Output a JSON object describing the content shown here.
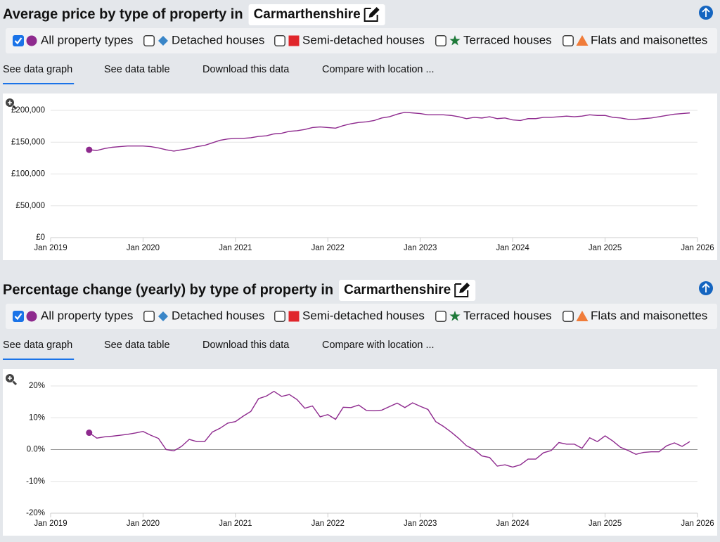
{
  "panels": [
    {
      "title": "Average price by type of property in",
      "location": "Carmarthenshire",
      "options": [
        {
          "label": "Detached houses",
          "color": "#3a86c8",
          "marker": "diamond",
          "checked": false
        },
        {
          "label": "Semi-detached houses",
          "color": "#e0262b",
          "marker": "square",
          "checked": false
        },
        {
          "label": "Terraced houses",
          "color": "#1f7a3a",
          "marker": "star",
          "checked": false
        },
        {
          "label": "Flats and maisonettes",
          "color": "#f07c3a",
          "marker": "triangle",
          "checked": false
        }
      ],
      "tabs": [
        "See data graph",
        "See data table",
        "Download this data",
        "Compare with location ..."
      ],
      "active_tab": 0
    },
    {
      "title": "Percentage change (yearly) by type of property in",
      "location": "Carmarthenshire",
      "options": [
        {
          "label": "Detached houses",
          "color": "#3a86c8",
          "marker": "diamond",
          "checked": false
        },
        {
          "label": "Semi-detached houses",
          "color": "#e0262b",
          "marker": "square",
          "checked": false
        },
        {
          "label": "Terraced houses",
          "color": "#1f7a3a",
          "marker": "star",
          "checked": false
        },
        {
          "label": "Flats and maisonettes",
          "color": "#f07c3a",
          "marker": "triangle",
          "checked": false
        }
      ],
      "tabs": [
        "See data graph",
        "See data table",
        "Download this data",
        "Compare with location ..."
      ],
      "active_tab": 0
    }
  ],
  "chart_data": [
    {
      "type": "line",
      "grid": true,
      "zero_line": false,
      "xlim": [
        "2019-01",
        "2026-01"
      ],
      "xticks": [
        {
          "value": "2019-01",
          "label": "Jan 2019"
        },
        {
          "value": "2020-01",
          "label": "Jan 2020"
        },
        {
          "value": "2021-01",
          "label": "Jan 2021"
        },
        {
          "value": "2022-01",
          "label": "Jan 2022"
        },
        {
          "value": "2023-01",
          "label": "Jan 2023"
        },
        {
          "value": "2024-01",
          "label": "Jan 2024"
        },
        {
          "value": "2025-01",
          "label": "Jan 2025"
        },
        {
          "value": "2026-01",
          "label": "Jan 2026"
        }
      ],
      "ylim": [
        0,
        200000
      ],
      "yticks": [
        {
          "value": 0,
          "label": "£0"
        },
        {
          "value": 50000,
          "label": "£50,000"
        },
        {
          "value": 100000,
          "label": "£100,000"
        },
        {
          "value": 150000,
          "label": "£150,000"
        },
        {
          "value": 200000,
          "label": "£200,000"
        }
      ],
      "x": [
        "2019-06",
        "2019-07",
        "2019-08",
        "2019-09",
        "2019-10",
        "2019-11",
        "2019-12",
        "2020-01",
        "2020-02",
        "2020-03",
        "2020-04",
        "2020-05",
        "2020-06",
        "2020-07",
        "2020-08",
        "2020-09",
        "2020-10",
        "2020-11",
        "2020-12",
        "2021-01",
        "2021-02",
        "2021-03",
        "2021-04",
        "2021-05",
        "2021-06",
        "2021-07",
        "2021-08",
        "2021-09",
        "2021-10",
        "2021-11",
        "2021-12",
        "2022-01",
        "2022-02",
        "2022-03",
        "2022-04",
        "2022-05",
        "2022-06",
        "2022-07",
        "2022-08",
        "2022-09",
        "2022-10",
        "2022-11",
        "2022-12",
        "2023-01",
        "2023-02",
        "2023-03",
        "2023-04",
        "2023-05",
        "2023-06",
        "2023-07",
        "2023-08",
        "2023-09",
        "2023-10",
        "2023-11",
        "2023-12",
        "2024-01",
        "2024-02",
        "2024-03",
        "2024-04",
        "2024-05",
        "2024-06",
        "2024-07",
        "2024-08",
        "2024-09",
        "2024-10",
        "2024-11",
        "2024-12",
        "2025-01",
        "2025-02",
        "2025-03",
        "2025-04",
        "2025-05",
        "2025-06",
        "2025-07",
        "2025-08",
        "2025-09",
        "2025-10",
        "2025-11",
        "2025-12"
      ],
      "series": [
        {
          "name": "All property types",
          "color": "#8e2a8e",
          "marker": "circle",
          "values": [
            138000,
            137000,
            140000,
            142000,
            143000,
            144000,
            144000,
            144000,
            143000,
            141000,
            138000,
            136000,
            138000,
            140000,
            143000,
            145000,
            149000,
            153000,
            155000,
            156000,
            156000,
            157000,
            159000,
            160000,
            163000,
            164000,
            167000,
            168000,
            170000,
            173000,
            174000,
            173000,
            172000,
            176000,
            179000,
            181000,
            182000,
            184000,
            188000,
            190000,
            194000,
            197000,
            196000,
            195000,
            193000,
            193000,
            193000,
            192000,
            190000,
            187000,
            189000,
            188000,
            190000,
            187000,
            188000,
            185000,
            184000,
            187000,
            187000,
            189000,
            189000,
            190000,
            191000,
            190000,
            191000,
            193000,
            192000,
            192000,
            189000,
            188000,
            186000,
            186000,
            187000,
            188000,
            190000,
            192000,
            194000,
            195000,
            196000
          ]
        }
      ]
    },
    {
      "type": "line",
      "grid": true,
      "zero_line": true,
      "xlim": [
        "2019-01",
        "2026-01"
      ],
      "xticks": [
        {
          "value": "2019-01",
          "label": "Jan 2019"
        },
        {
          "value": "2020-01",
          "label": "Jan 2020"
        },
        {
          "value": "2021-01",
          "label": "Jan 2021"
        },
        {
          "value": "2022-01",
          "label": "Jan 2022"
        },
        {
          "value": "2023-01",
          "label": "Jan 2023"
        },
        {
          "value": "2024-01",
          "label": "Jan 2024"
        },
        {
          "value": "2025-01",
          "label": "Jan 2025"
        },
        {
          "value": "2026-01",
          "label": "Jan 2026"
        }
      ],
      "ylim": [
        -20,
        20
      ],
      "yticks": [
        {
          "value": -20,
          "label": "-20%"
        },
        {
          "value": -10,
          "label": "-10%"
        },
        {
          "value": 0,
          "label": "0.0%"
        },
        {
          "value": 10,
          "label": "10%"
        },
        {
          "value": 20,
          "label": "20%"
        }
      ],
      "x": [
        "2019-06",
        "2019-07",
        "2019-08",
        "2019-09",
        "2019-10",
        "2019-11",
        "2019-12",
        "2020-01",
        "2020-02",
        "2020-03",
        "2020-04",
        "2020-05",
        "2020-06",
        "2020-07",
        "2020-08",
        "2020-09",
        "2020-10",
        "2020-11",
        "2020-12",
        "2021-01",
        "2021-02",
        "2021-03",
        "2021-04",
        "2021-05",
        "2021-06",
        "2021-07",
        "2021-08",
        "2021-09",
        "2021-10",
        "2021-11",
        "2021-12",
        "2022-01",
        "2022-02",
        "2022-03",
        "2022-04",
        "2022-05",
        "2022-06",
        "2022-07",
        "2022-08",
        "2022-09",
        "2022-10",
        "2022-11",
        "2022-12",
        "2023-01",
        "2023-02",
        "2023-03",
        "2023-04",
        "2023-05",
        "2023-06",
        "2023-07",
        "2023-08",
        "2023-09",
        "2023-10",
        "2023-11",
        "2023-12",
        "2024-01",
        "2024-02",
        "2024-03",
        "2024-04",
        "2024-05",
        "2024-06",
        "2024-07",
        "2024-08",
        "2024-09",
        "2024-10",
        "2024-11",
        "2024-12",
        "2025-01",
        "2025-02",
        "2025-03",
        "2025-04",
        "2025-05",
        "2025-06",
        "2025-07",
        "2025-08",
        "2025-09",
        "2025-10",
        "2025-11",
        "2025-12"
      ],
      "series": [
        {
          "name": "All property types",
          "color": "#8e2a8e",
          "marker": "circle",
          "values": [
            5.3,
            3.6,
            4.0,
            4.2,
            4.5,
            4.8,
            5.2,
            5.7,
            4.5,
            3.5,
            0.0,
            -0.4,
            1.0,
            3.2,
            2.5,
            2.5,
            5.5,
            6.7,
            8.3,
            8.8,
            10.5,
            12.0,
            16.0,
            16.8,
            18.3,
            16.7,
            17.3,
            15.7,
            13.0,
            13.7,
            10.3,
            11.0,
            9.5,
            13.3,
            13.2,
            14.0,
            12.3,
            12.2,
            12.4,
            13.5,
            14.6,
            13.2,
            14.7,
            13.6,
            12.6,
            8.8,
            7.3,
            5.5,
            3.5,
            1.2,
            0.0,
            -2.0,
            -2.5,
            -5.2,
            -4.8,
            -5.5,
            -4.8,
            -3.0,
            -3.0,
            -1.0,
            -0.3,
            2.2,
            1.7,
            1.7,
            0.4,
            3.7,
            2.5,
            4.3,
            2.7,
            0.7,
            -0.3,
            -1.5,
            -0.9,
            -0.7,
            -0.7,
            1.2,
            2.1,
            1.0,
            2.5
          ]
        }
      ]
    }
  ]
}
